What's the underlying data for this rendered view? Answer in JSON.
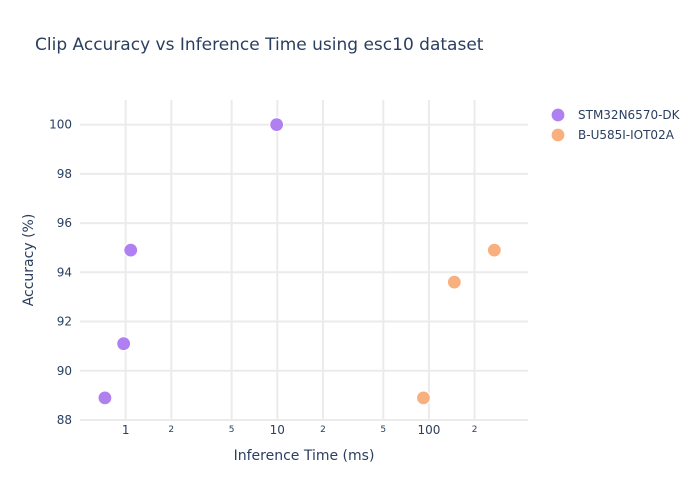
{
  "chart_data": {
    "type": "scatter",
    "title": "Clip Accuracy vs Inference Time using esc10 dataset",
    "xlabel": "Inference Time (ms)",
    "ylabel": "Accuracy (%)",
    "x_scale": "log",
    "xlim": [
      0.5,
      450
    ],
    "ylim": [
      88,
      101
    ],
    "grid": true,
    "legend_position": "top-right",
    "x_ticks_major": [
      {
        "value": 1,
        "label": "1"
      },
      {
        "value": 10,
        "label": "10"
      },
      {
        "value": 100,
        "label": "100"
      }
    ],
    "x_ticks_minor": [
      {
        "value": 2,
        "label": "2"
      },
      {
        "value": 5,
        "label": "5"
      },
      {
        "value": 20,
        "label": "2"
      },
      {
        "value": 50,
        "label": "5"
      },
      {
        "value": 200,
        "label": "2"
      }
    ],
    "y_ticks": [
      88,
      90,
      92,
      94,
      96,
      98,
      100
    ],
    "series": [
      {
        "name": "STM32N6570-DK",
        "color": "#b07ff0",
        "points": [
          {
            "x": 0.73,
            "y": 88.9
          },
          {
            "x": 0.97,
            "y": 91.1
          },
          {
            "x": 1.08,
            "y": 94.9
          },
          {
            "x": 9.9,
            "y": 100
          }
        ]
      },
      {
        "name": "B-U585I-IOT02A",
        "color": "#f8b07f",
        "points": [
          {
            "x": 92,
            "y": 88.9
          },
          {
            "x": 147,
            "y": 93.6
          },
          {
            "x": 270,
            "y": 94.9
          }
        ]
      }
    ]
  }
}
